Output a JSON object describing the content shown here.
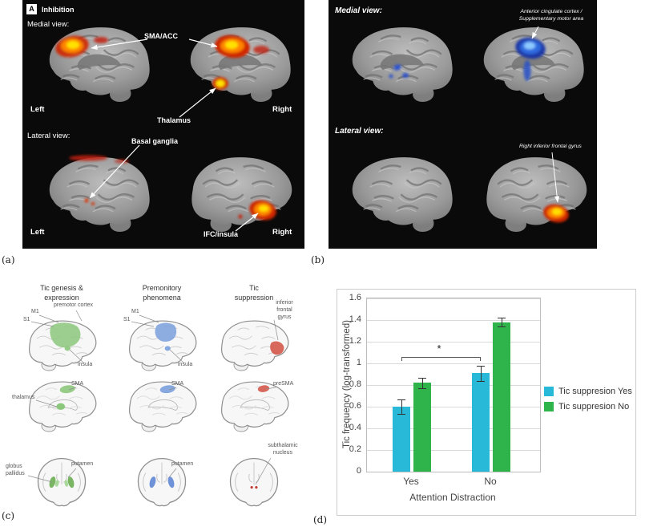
{
  "captions": {
    "a": "(a)",
    "b": "(b)",
    "c": "(c)",
    "d": "(d)"
  },
  "panel_a": {
    "tag_letter": "A",
    "title": "Inhibition",
    "medial_view": "Medial view:",
    "lateral_view": "Lateral view:",
    "label_sma_acc": "SMA/ACC",
    "label_thalamus": "Thalamus",
    "label_basal_ganglia": "Basal ganglia",
    "label_ifc_insula": "IFC/insula",
    "left_medial": "Left",
    "right_medial": "Right",
    "left_lateral": "Left",
    "right_lateral": "Right"
  },
  "panel_b": {
    "medial_view": "Medial view:",
    "lateral_view": "Lateral view:",
    "annotation_medial_line1": "Anterior cingulate cortex /",
    "annotation_medial_line2": "Supplementary motor area",
    "annotation_lateral": "Right inferior frontal gyrus"
  },
  "panel_c": {
    "headers": {
      "col1_line1": "Tic genesis &",
      "col1_line2": "expression",
      "col2_line1": "Premonitory",
      "col2_line2": "phenomena",
      "col3_line1": "Tic",
      "col3_line2": "suppression"
    },
    "labels": {
      "m1_col1": "M1",
      "s1_col1": "S1",
      "premotor_cortex": "premotor cortex",
      "insula_col1": "insula",
      "m1_col2": "M1",
      "s1_col2": "S1",
      "insula_col2": "insula",
      "ifg_line1": "inferior",
      "ifg_line2": "frontal",
      "ifg_line3": "gyrus",
      "thalamus": "thalamus",
      "sma_col1": "SMA",
      "sma_col2": "SMA",
      "presma": "preSMA",
      "stn_line1": "subthalamic",
      "stn_line2": "nucleus",
      "globus_line1": "globus",
      "globus_line2": "pallidus",
      "putamen_col1": "putamen",
      "putamen_col2": "putamen"
    }
  },
  "chart_data": {
    "type": "bar",
    "categories": [
      "Yes",
      "No"
    ],
    "series": [
      {
        "name": "Tic suppresion Yes",
        "color": "#29B9D8",
        "values": [
          0.6,
          0.91
        ],
        "errors": [
          0.07,
          0.07
        ]
      },
      {
        "name": "Tic suppresion No",
        "color": "#2EB44B",
        "values": [
          0.82,
          1.38
        ],
        "errors": [
          0.05,
          0.04
        ]
      }
    ],
    "xlabel": "Attention Distraction",
    "ylabel": "Tic frequency (log-transformed)",
    "ylim": [
      0,
      1.6
    ],
    "ytick_labels": [
      "0",
      "0.2",
      "0.4",
      "0.6",
      "0.8",
      "1",
      "1.2",
      "1.4",
      "1.6"
    ],
    "grid": true,
    "legend_position": "right",
    "significance": {
      "label": "*",
      "value": 1.06,
      "from_group": 0,
      "to_group": 1,
      "series": 0
    }
  }
}
